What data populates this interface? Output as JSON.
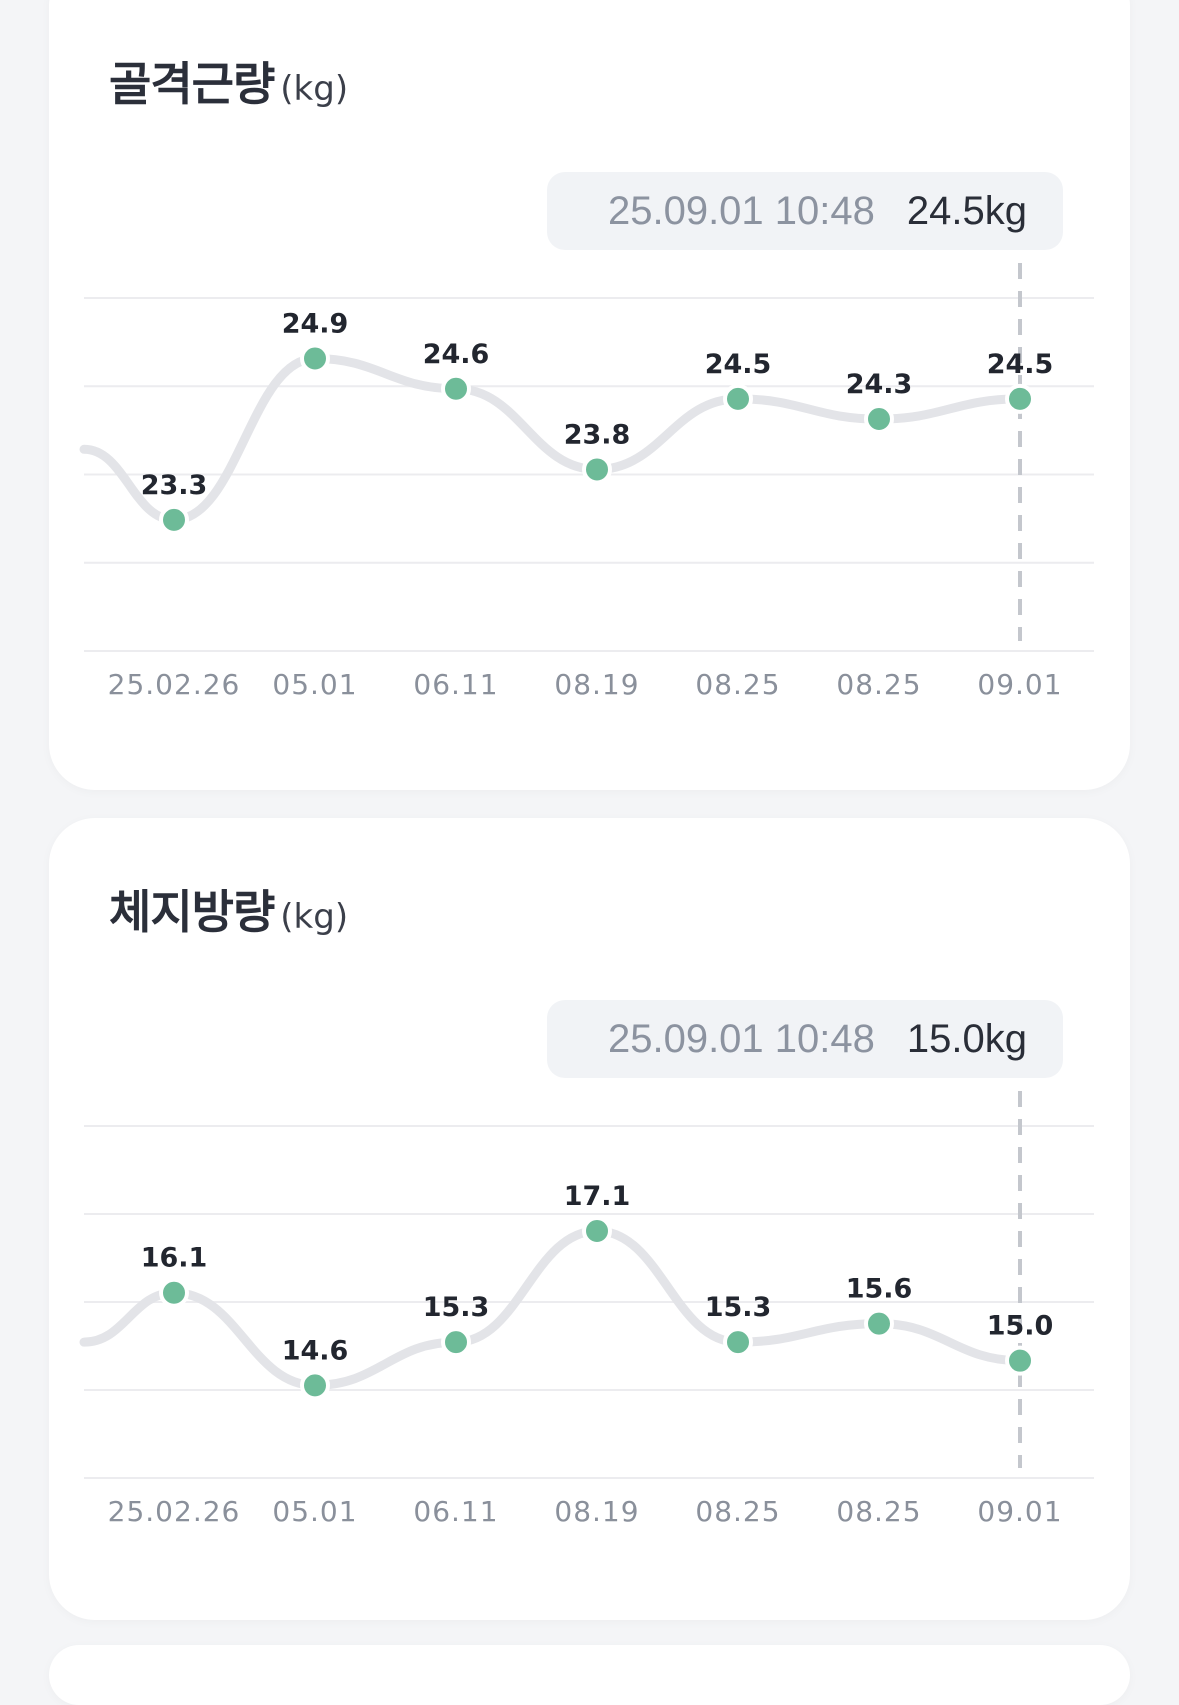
{
  "charts": [
    {
      "title": "골격근량",
      "unit": "(kg)",
      "tooltip": {
        "date": "25.09.01 10:48",
        "value": "24.5kg"
      }
    },
    {
      "title": "체지방량",
      "unit": "(kg)",
      "tooltip": {
        "date": "25.09.01 10:48",
        "value": "15.0kg"
      }
    }
  ],
  "colors": {
    "point": "#6dbb98",
    "line": "#e3e4e8",
    "grid": "#ececef",
    "guide": "#c4c7cd"
  },
  "chart_data": [
    {
      "type": "line",
      "title": "골격근량",
      "ylabel": "(kg)",
      "categories": [
        "25.02.26",
        "05.01",
        "06.11",
        "08.19",
        "08.25",
        "08.25",
        "09.01"
      ],
      "values": [
        23.3,
        24.9,
        24.6,
        23.8,
        24.5,
        24.3,
        24.5
      ],
      "value_labels": [
        "23.3",
        "24.9",
        "24.6",
        "23.8",
        "24.5",
        "24.3",
        "24.5"
      ],
      "ylim": [
        22.0,
        25.5
      ],
      "lead_in_value": 24.0,
      "grid": true,
      "selected_index": 6
    },
    {
      "type": "line",
      "title": "체지방량",
      "ylabel": "(kg)",
      "categories": [
        "25.02.26",
        "05.01",
        "06.11",
        "08.19",
        "08.25",
        "08.25",
        "09.01"
      ],
      "values": [
        16.1,
        14.6,
        15.3,
        17.1,
        15.3,
        15.6,
        15.0
      ],
      "value_labels": [
        "16.1",
        "14.6",
        "15.3",
        "17.1",
        "15.3",
        "15.6",
        "15.0"
      ],
      "ylim": [
        13.1,
        18.8
      ],
      "lead_in_value": 15.3,
      "grid": true,
      "selected_index": 6
    }
  ]
}
